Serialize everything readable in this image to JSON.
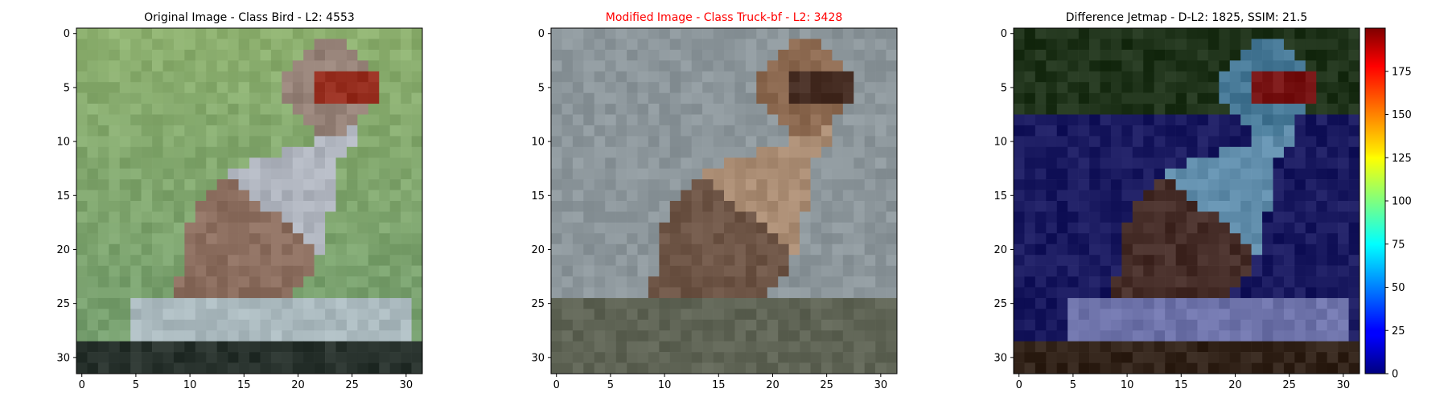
{
  "figure": {
    "panels": [
      {
        "title": "Original Image - Class Bird - L2: 4553",
        "title_color": "#000000",
        "xticks": [
          "0",
          "5",
          "10",
          "15",
          "20",
          "25",
          "30"
        ],
        "yticks": [
          "0",
          "5",
          "10",
          "15",
          "20",
          "25",
          "30"
        ],
        "image": "32x32 pixelated photo: sparrow-like bird perched, green background, grey-blue rock below"
      },
      {
        "title": "Modified Image - Class Truck-bf - L2: 3428",
        "title_color": "#ff0000",
        "xticks": [
          "0",
          "5",
          "10",
          "15",
          "20",
          "25",
          "30"
        ],
        "yticks": [
          "0",
          "5",
          "10",
          "15",
          "20",
          "25",
          "30"
        ],
        "image": "32x32 pixelated photo: same bird, brownish tones, grey-blue background, dark olive ground"
      },
      {
        "title": "Difference Jetmap - D-L2: 1825, SSIM: 21.5",
        "title_color": "#000000",
        "xticks": [
          "0",
          "5",
          "10",
          "15",
          "20",
          "25",
          "30"
        ],
        "yticks": [
          "0",
          "5",
          "10",
          "15",
          "20",
          "25",
          "30"
        ],
        "image": "32x32 jet-colormap difference overlay: dark blue/green background, bird outline, blue-grey rock"
      }
    ],
    "colorbar": {
      "ticks": [
        "0",
        "25",
        "50",
        "75",
        "100",
        "125",
        "150",
        "175"
      ],
      "range": [
        0,
        200
      ],
      "colormap": "jet"
    }
  },
  "chart_data": [
    {
      "type": "heatmap",
      "title": "Original Image - Class Bird - L2: 4553",
      "xlim": [
        -0.5,
        31.5
      ],
      "ylim": [
        31.5,
        -0.5
      ],
      "grid": false
    },
    {
      "type": "heatmap",
      "title": "Modified Image - Class Truck-bf - L2: 3428",
      "xlim": [
        -0.5,
        31.5
      ],
      "ylim": [
        31.5,
        -0.5
      ],
      "grid": false
    },
    {
      "type": "heatmap",
      "title": "Difference Jetmap - D-L2: 1825, SSIM: 21.5",
      "xlim": [
        -0.5,
        31.5
      ],
      "ylim": [
        31.5,
        -0.5
      ],
      "grid": false,
      "colorbar_range": [
        0,
        200
      ]
    }
  ]
}
